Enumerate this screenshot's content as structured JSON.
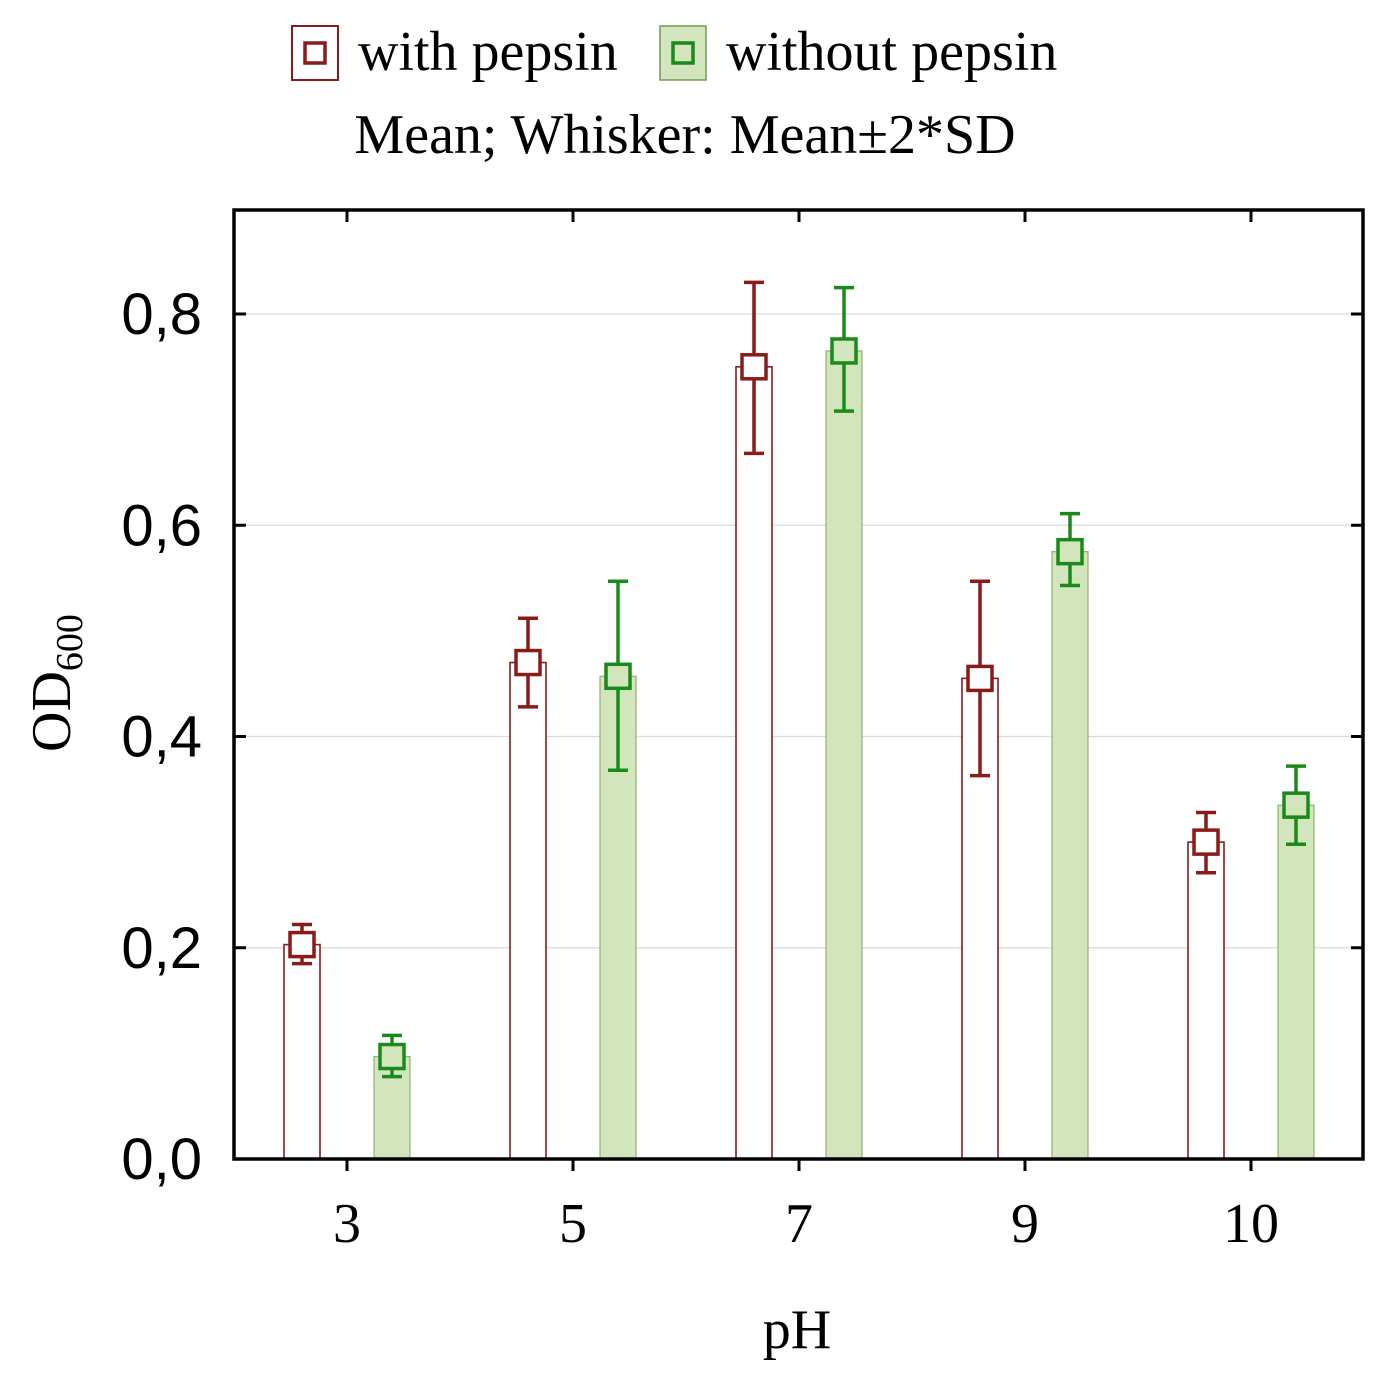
{
  "chart_data": {
    "type": "bar",
    "subtitle": "Mean; Whisker: Mean±2*SD",
    "xlabel": "pH",
    "ylabel_main": "OD",
    "ylabel_sub": "600",
    "categories": [
      "3",
      "5",
      "7",
      "9",
      "10"
    ],
    "ylim": [
      0,
      0.9
    ],
    "yticks": [
      0.0,
      0.2,
      0.4,
      0.6,
      0.8
    ],
    "ytick_labels": [
      "0,0",
      "0,2",
      "0,4",
      "0,6",
      "0,8"
    ],
    "grid": true,
    "legend_position": "top-center",
    "series": [
      {
        "name": "with pepsin",
        "fill": "#ffffff",
        "color": "#8b1a1a",
        "values": [
          0.203,
          0.47,
          0.75,
          0.455,
          0.3
        ],
        "err_low": [
          0.185,
          0.428,
          0.668,
          0.363,
          0.271
        ],
        "err_high": [
          0.222,
          0.512,
          0.83,
          0.547,
          0.328
        ]
      },
      {
        "name": "without pepsin",
        "fill": "#d3e5bd",
        "color": "#1a8a1a",
        "values": [
          0.097,
          0.457,
          0.765,
          0.575,
          0.335
        ],
        "err_low": [
          0.078,
          0.368,
          0.708,
          0.543,
          0.298
        ],
        "err_high": [
          0.117,
          0.547,
          0.825,
          0.611,
          0.372
        ]
      }
    ]
  }
}
